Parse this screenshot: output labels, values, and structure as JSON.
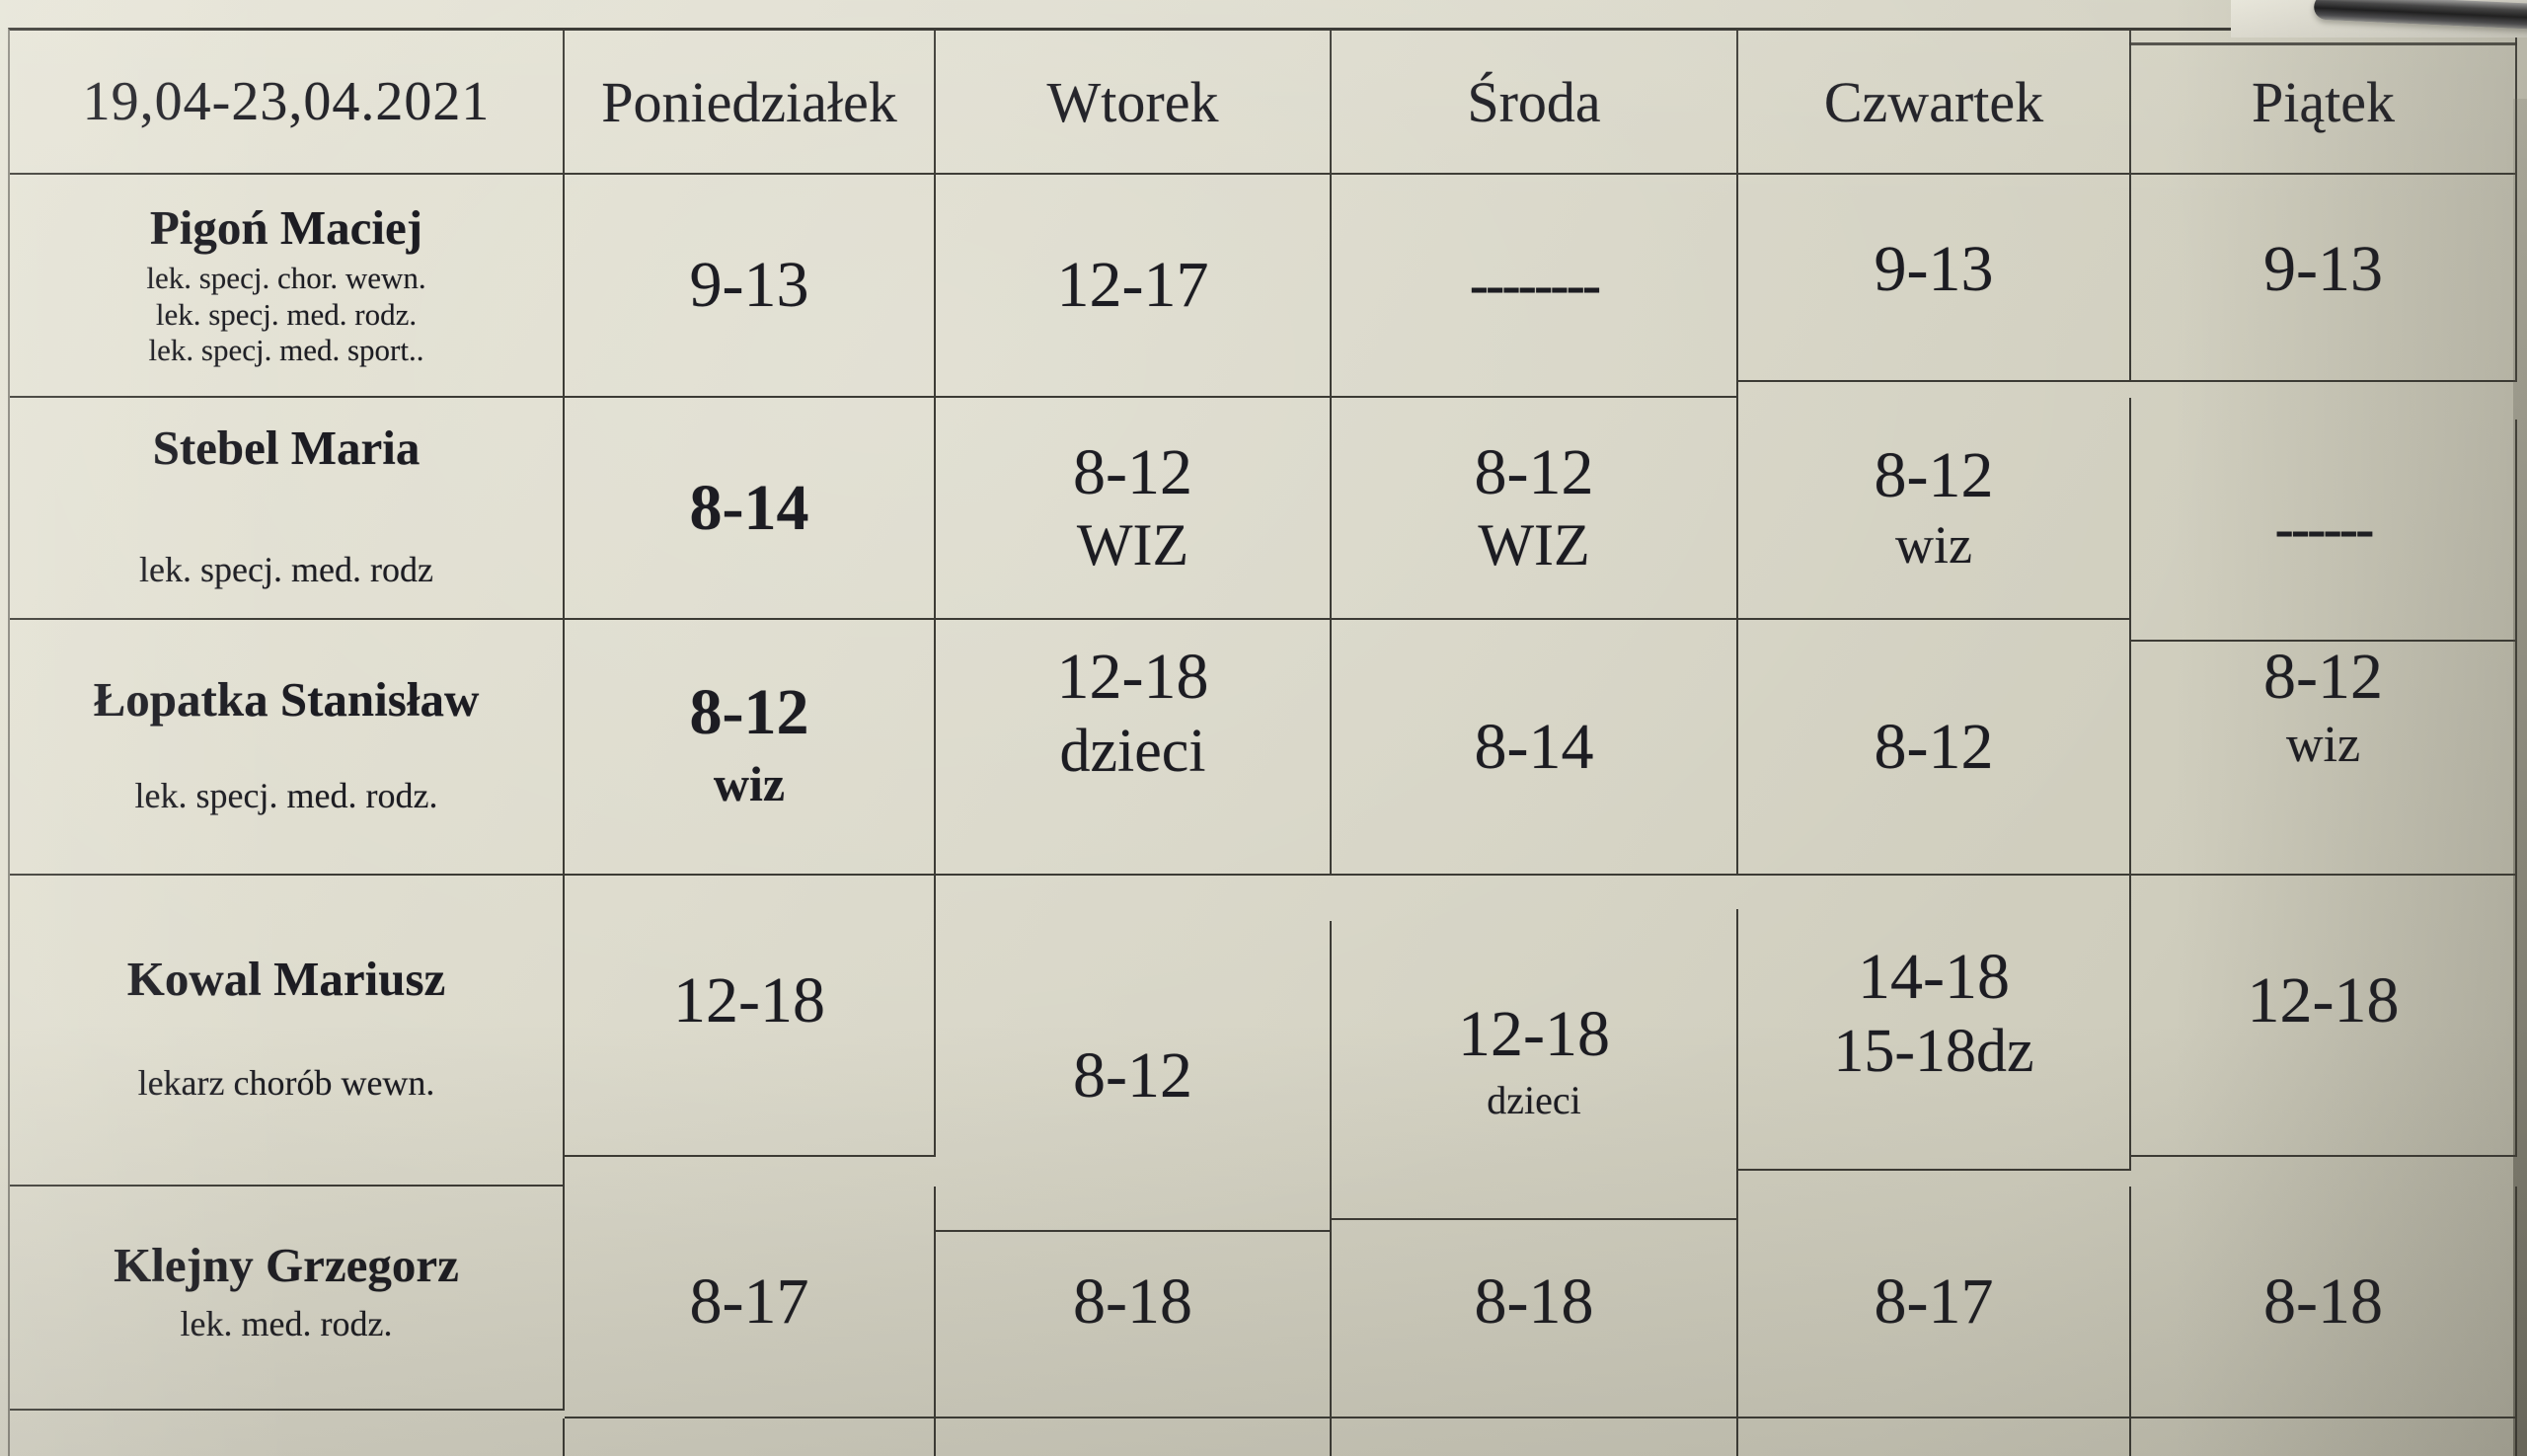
{
  "photo": {
    "paper_color": "#d8d6c7",
    "line_color": "#3c3b35",
    "ink_color": "#1c1c22"
  },
  "header": {
    "week_range": "19,04-23,04.2021",
    "days": [
      "Poniedziałek",
      "Wtorek",
      "Środa",
      "Czwartek",
      "Piątek"
    ]
  },
  "rows": [
    {
      "name": "Pigoń Maciej",
      "titles": [
        "lek. specj. chor. wewn.",
        "lek. specj. med. rodz.",
        "lek. specj. med. sport.."
      ],
      "cells": [
        {
          "l1": "9-13",
          "l2": ""
        },
        {
          "l1": "12-17",
          "l2": ""
        },
        {
          "l1": "--------",
          "l2": ""
        },
        {
          "l1": "9-13",
          "l2": ""
        },
        {
          "l1": "9-13",
          "l2": ""
        }
      ]
    },
    {
      "name": "Stebel Maria",
      "titles": [
        "lek. specj. med. rodz"
      ],
      "cells": [
        {
          "l1": "8-14",
          "l2": ""
        },
        {
          "l1": "8-12",
          "l2": "WIZ"
        },
        {
          "l1": "8-12",
          "l2": "WIZ"
        },
        {
          "l1": "8-12",
          "l2": "wiz"
        },
        {
          "l1": "------",
          "l2": ""
        }
      ]
    },
    {
      "name": "Łopatka Stanisław",
      "titles": [
        "lek. specj. med. rodz."
      ],
      "cells": [
        {
          "l1": "8-12",
          "l2": "wiz"
        },
        {
          "l1": "12-18",
          "l2": "dzieci"
        },
        {
          "l1": "8-14",
          "l2": ""
        },
        {
          "l1": "8-12",
          "l2": ""
        },
        {
          "l1": "8-12",
          "l2": "wiz"
        }
      ]
    },
    {
      "name": "Kowal Mariusz",
      "titles": [
        "lekarz chorób wewn."
      ],
      "cells": [
        {
          "l1": "12-18",
          "l2": ""
        },
        {
          "l1": "8-12",
          "l2": ""
        },
        {
          "l1": "12-18",
          "l2": "dzieci"
        },
        {
          "l1": "14-18",
          "l2": "15-18dz"
        },
        {
          "l1": "12-18",
          "l2": ""
        }
      ]
    },
    {
      "name": "Klejny Grzegorz",
      "titles": [
        "lek. med. rodz."
      ],
      "cells": [
        {
          "l1": "8-17",
          "l2": ""
        },
        {
          "l1": "8-18",
          "l2": ""
        },
        {
          "l1": "8-18",
          "l2": ""
        },
        {
          "l1": "8-17",
          "l2": ""
        },
        {
          "l1": "8-18",
          "l2": ""
        }
      ]
    }
  ]
}
